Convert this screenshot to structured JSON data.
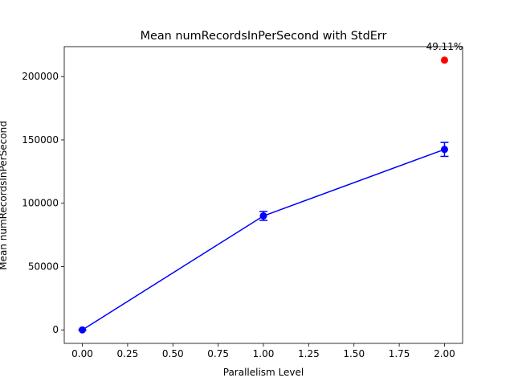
{
  "chart_data": {
    "type": "line",
    "title": "Mean numRecordsInPerSecond with StdErr",
    "xlabel": "Parallelism Level",
    "ylabel": "Mean numRecordsInPerSecond",
    "xlim": [
      -0.1,
      2.1
    ],
    "ylim": [
      -10650,
      223650
    ],
    "xticks": [
      0.0,
      0.25,
      0.5,
      0.75,
      1.0,
      1.25,
      1.5,
      1.75,
      2.0
    ],
    "xtick_labels": [
      "0.00",
      "0.25",
      "0.50",
      "0.75",
      "1.00",
      "1.25",
      "1.50",
      "1.75",
      "2.00"
    ],
    "yticks": [
      0,
      50000,
      100000,
      150000,
      200000
    ],
    "ytick_labels": [
      "0",
      "50000",
      "100000",
      "150000",
      "200000"
    ],
    "grid": false,
    "series": [
      {
        "color": "#0000ff",
        "marker": "circle",
        "x": [
          0,
          1,
          2
        ],
        "y": [
          0,
          90000,
          142500
        ],
        "stderr": [
          0,
          3500,
          5500
        ]
      }
    ],
    "highlight_point": {
      "x": 2,
      "y": 213000,
      "color": "#ff0000",
      "label": "49.11%"
    }
  }
}
